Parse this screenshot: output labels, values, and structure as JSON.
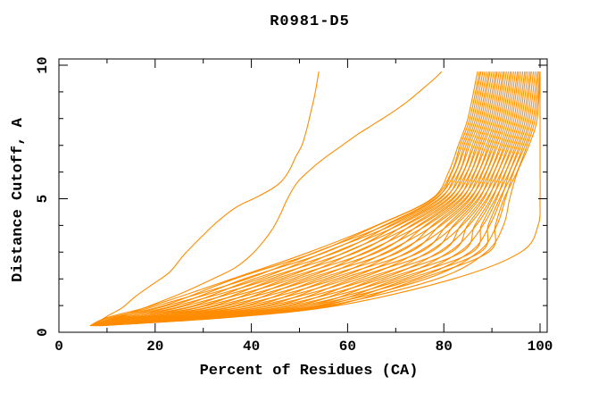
{
  "chart_data": {
    "type": "line",
    "title": "R0981-D5",
    "xlabel": "Percent of Residues (CA)",
    "ylabel": "Distance Cutoff, A",
    "xlim": [
      0,
      100
    ],
    "ylim": [
      0,
      10
    ],
    "grid": false,
    "legend": null,
    "x_ticks": {
      "major": [
        0,
        20,
        40,
        60,
        80,
        100
      ],
      "minor": [
        10,
        30,
        50,
        70,
        90
      ]
    },
    "y_ticks": {
      "major": [
        0,
        5,
        10
      ],
      "minor": [
        1,
        2,
        3,
        4,
        6,
        7,
        8,
        9
      ]
    },
    "colors": {
      "curve": "#FF8C00",
      "axis": "#000000",
      "background": "#FFFFFF",
      "text": "#000000"
    },
    "bundle": {
      "description": "Dense bundle of model curves: percent of residues (x) under each distance cutoff (y, Angstrom)",
      "y_levels": [
        0.25,
        0.55,
        1,
        2,
        3,
        4,
        5,
        6,
        7,
        8,
        9.75
      ],
      "curves_x": [
        [
          6.5,
          10.0,
          19.5,
          36.0,
          52.0,
          66.0,
          77.5,
          81.0,
          83.0,
          85.0,
          87.0
        ],
        [
          6.6,
          10.7,
          21.8,
          36.5,
          53.5,
          66.2,
          77.7,
          81.6,
          83.4,
          85.4,
          87.4
        ],
        [
          6.6,
          11.4,
          20.5,
          39.2,
          53.3,
          67.8,
          78.4,
          81.7,
          83.8,
          85.8,
          87.7
        ],
        [
          6.7,
          12.0,
          23.8,
          38.5,
          55.5,
          67.5,
          78.2,
          82.4,
          84.2,
          86.2,
          88.1
        ],
        [
          6.8,
          12.7,
          22.5,
          41.7,
          55.2,
          69.2,
          79.3,
          82.5,
          84.6,
          86.6,
          88.5
        ],
        [
          6.9,
          13.4,
          25.8,
          40.5,
          57.8,
          68.8,
          79.0,
          83.2,
          85.0,
          87.0,
          88.9
        ],
        [
          6.9,
          14.1,
          24.5,
          44.0,
          57.3,
          70.5,
          80.2,
          83.3,
          85.4,
          87.4,
          89.3
        ],
        [
          7.0,
          14.8,
          28.0,
          42.8,
          59.8,
          70.2,
          79.9,
          84.0,
          85.9,
          87.8,
          89.6
        ],
        [
          7.1,
          15.4,
          26.5,
          46.2,
          59.5,
          72.0,
          81.1,
          84.1,
          86.3,
          88.2,
          90.0
        ],
        [
          7.1,
          16.1,
          30.2,
          45.0,
          62.0,
          71.7,
          80.8,
          84.8,
          86.7,
          88.6,
          90.4
        ],
        [
          7.2,
          16.8,
          28.7,
          48.5,
          61.5,
          73.5,
          82.0,
          84.9,
          87.1,
          89.0,
          90.8
        ],
        [
          7.3,
          17.5,
          32.3,
          47.2,
          64.2,
          73.2,
          81.7,
          85.6,
          87.5,
          89.4,
          91.1
        ],
        [
          7.3,
          18.2,
          30.8,
          50.8,
          63.7,
          75.0,
          82.9,
          85.7,
          87.9,
          89.8,
          91.5
        ],
        [
          7.4,
          18.8,
          34.5,
          49.5,
          66.3,
          74.7,
          82.6,
          86.4,
          88.3,
          90.2,
          91.9
        ],
        [
          7.5,
          19.5,
          33.0,
          53.0,
          65.8,
          76.4,
          83.8,
          86.5,
          88.8,
          90.6,
          92.3
        ],
        [
          7.6,
          20.2,
          36.6,
          51.8,
          68.5,
          76.1,
          83.5,
          87.2,
          89.2,
          91.0,
          92.6
        ],
        [
          7.6,
          20.9,
          35.1,
          55.4,
          68.0,
          77.9,
          84.7,
          87.3,
          89.6,
          91.4,
          93.0
        ],
        [
          7.7,
          21.6,
          38.9,
          54.1,
          70.7,
          77.6,
          84.4,
          88.0,
          90.0,
          91.8,
          93.4
        ],
        [
          7.8,
          22.2,
          37.4,
          57.7,
          70.2,
          79.4,
          85.6,
          88.1,
          90.4,
          92.2,
          93.8
        ],
        [
          7.8,
          22.9,
          41.1,
          56.4,
          72.9,
          79.1,
          85.3,
          88.8,
          90.8,
          92.6,
          94.1
        ],
        [
          7.9,
          23.6,
          39.6,
          60.0,
          72.4,
          80.9,
          86.5,
          88.9,
          91.2,
          93.0,
          94.5
        ],
        [
          8.0,
          24.3,
          43.3,
          58.7,
          75.1,
          80.6,
          86.2,
          89.6,
          91.7,
          93.4,
          94.9
        ],
        [
          8.0,
          25.0,
          41.8,
          62.3,
          74.6,
          82.3,
          87.4,
          89.7,
          92.1,
          93.8,
          95.3
        ],
        [
          8.1,
          25.6,
          45.5,
          61.0,
          77.2,
          82.0,
          87.1,
          90.4,
          92.5,
          94.2,
          95.6
        ],
        [
          8.2,
          26.3,
          44.0,
          64.8,
          76.7,
          83.8,
          88.3,
          90.5,
          92.9,
          94.6,
          96.0
        ],
        [
          8.3,
          27.0,
          47.7,
          63.5,
          79.4,
          83.5,
          88.0,
          91.2,
          93.3,
          95.0,
          96.4
        ],
        [
          8.3,
          27.7,
          46.2,
          67.0,
          78.9,
          85.2,
          89.2,
          91.3,
          93.7,
          95.4,
          96.8
        ],
        [
          8.4,
          28.4,
          49.9,
          65.8,
          81.5,
          84.9,
          88.9,
          92.0,
          94.1,
          95.8,
          97.1
        ],
        [
          8.5,
          29.0,
          48.4,
          69.4,
          81.0,
          86.7,
          90.1,
          92.1,
          94.5,
          96.2,
          97.5
        ],
        [
          8.5,
          29.7,
          52.1,
          68.1,
          83.7,
          86.4,
          89.8,
          92.8,
          94.9,
          96.6,
          97.9
        ],
        [
          8.6,
          30.4,
          50.6,
          71.7,
          83.2,
          88.1,
          91.0,
          92.9,
          95.3,
          97.0,
          98.2
        ],
        [
          8.7,
          31.1,
          53.8,
          70.4,
          85.9,
          87.8,
          90.7,
          93.6,
          95.7,
          97.4,
          98.6
        ],
        [
          8.7,
          31.8,
          52.3,
          74.0,
          85.4,
          89.5,
          91.9,
          93.7,
          96.1,
          97.8,
          99.0
        ],
        [
          8.8,
          32.4,
          55.0,
          72.7,
          87.6,
          89.2,
          91.6,
          94.4,
          96.5,
          98.2,
          99.4
        ],
        [
          8.9,
          33.1,
          54.2,
          76.3,
          87.1,
          91.0,
          92.8,
          94.5,
          96.9,
          98.6,
          99.7
        ],
        [
          9.0,
          33.8,
          56.9,
          75.0,
          89.3,
          90.7,
          92.5,
          95.2,
          97.3,
          99.0,
          100.0
        ],
        [
          9.0,
          34.5,
          55.9,
          78.6,
          88.8,
          92.4,
          93.7,
          95.3,
          97.7,
          99.4,
          100.0
        ],
        [
          9.1,
          35.0,
          58.0,
          82.0,
          96.0,
          99.6,
          100.0,
          100.0,
          100.0,
          100.0,
          100.0
        ]
      ]
    },
    "outliers": [
      {
        "name": "early-rising-model-1",
        "points": [
          [
            7.5,
            0.3
          ],
          [
            10,
            0.6
          ],
          [
            13,
            0.9
          ],
          [
            16,
            1.35
          ],
          [
            19.5,
            1.8
          ],
          [
            23,
            2.25
          ],
          [
            26,
            2.9
          ],
          [
            29.5,
            3.55
          ],
          [
            33,
            4.15
          ],
          [
            37,
            4.7
          ],
          [
            41,
            5.05
          ],
          [
            44.5,
            5.4
          ],
          [
            46.5,
            5.7
          ],
          [
            48,
            6.1
          ],
          [
            49.3,
            6.6
          ],
          [
            50.5,
            7.0
          ],
          [
            51.5,
            7.6
          ],
          [
            52.3,
            8.2
          ],
          [
            53.2,
            8.9
          ],
          [
            54,
            9.75
          ]
        ]
      },
      {
        "name": "early-rising-model-2",
        "points": [
          [
            8,
            0.25
          ],
          [
            13,
            0.6
          ],
          [
            19,
            1.0
          ],
          [
            26,
            1.5
          ],
          [
            32,
            2.0
          ],
          [
            36.5,
            2.4
          ],
          [
            40,
            2.9
          ],
          [
            42.5,
            3.4
          ],
          [
            44.5,
            3.9
          ],
          [
            46,
            4.4
          ],
          [
            47.5,
            5.0
          ],
          [
            49.5,
            5.6
          ],
          [
            52,
            6.05
          ],
          [
            55,
            6.5
          ],
          [
            58.5,
            6.95
          ],
          [
            62,
            7.4
          ],
          [
            65.5,
            7.8
          ],
          [
            69,
            8.2
          ],
          [
            72.5,
            8.65
          ],
          [
            75.5,
            9.1
          ],
          [
            77.8,
            9.45
          ],
          [
            79.5,
            9.75
          ]
        ]
      }
    ]
  }
}
